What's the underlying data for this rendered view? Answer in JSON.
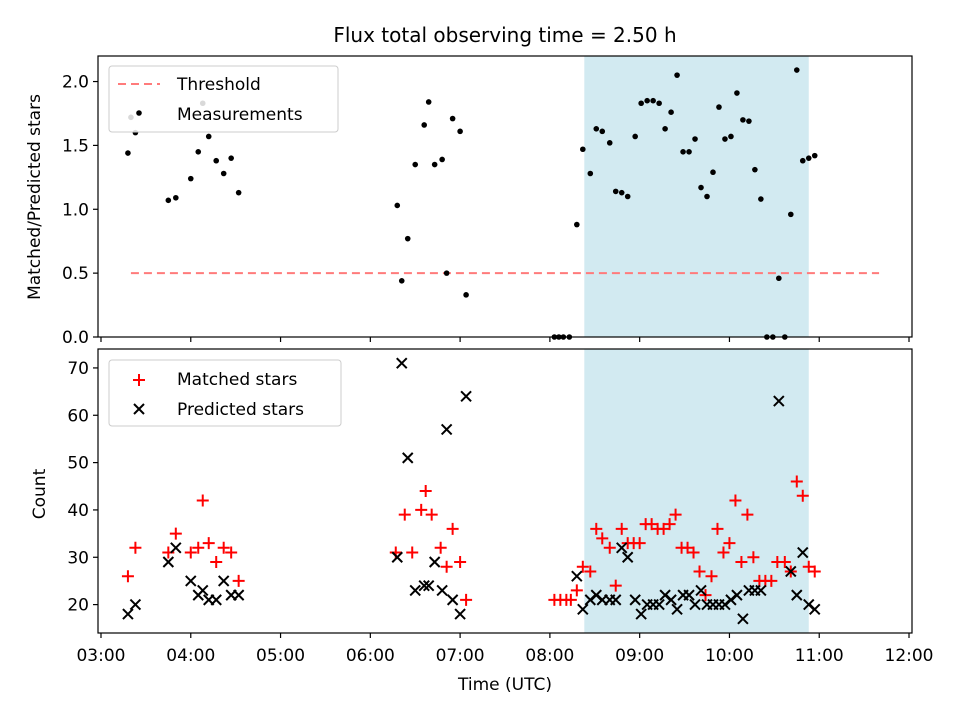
{
  "title": "Flux total observing time = 2.50 h",
  "xlabel": "Time (UTC)",
  "x_ticks": [
    "03:00",
    "04:00",
    "05:00",
    "06:00",
    "07:00",
    "08:00",
    "09:00",
    "10:00",
    "11:00",
    "12:00"
  ],
  "colors": {
    "threshold": "#ff7b7b",
    "measurement": "#000000",
    "matched": "#ff0000",
    "predicted": "#000000",
    "highlight": "#add8e6"
  },
  "chart_data": [
    {
      "type": "scatter",
      "ylabel": "Matched/Predicted stars",
      "xlim": [
        "02:58",
        "12:02"
      ],
      "ylim": [
        0,
        2.2
      ],
      "y_ticks": [
        "0.0",
        "0.5",
        "1.0",
        "1.5",
        "2.0"
      ],
      "legend": {
        "position": "top-left",
        "entries": [
          "Threshold",
          "Measurements"
        ]
      },
      "highlight_span": [
        "08:23",
        "10:53"
      ],
      "threshold": {
        "name": "Threshold",
        "y": 0.5,
        "x": [
          "03:20",
          "11:40"
        ],
        "style": "dashed"
      },
      "series": [
        {
          "name": "Measurements",
          "points": [
            [
              "03:18",
              1.44
            ],
            [
              "03:20",
              1.72
            ],
            [
              "03:23",
              1.6
            ],
            [
              "03:45",
              1.07
            ],
            [
              "03:50",
              1.09
            ],
            [
              "04:00",
              1.24
            ],
            [
              "04:05",
              1.45
            ],
            [
              "04:08",
              1.83
            ],
            [
              "04:12",
              1.57
            ],
            [
              "04:17",
              1.38
            ],
            [
              "04:22",
              1.28
            ],
            [
              "04:27",
              1.4
            ],
            [
              "04:32",
              1.13
            ],
            [
              "06:18",
              1.03
            ],
            [
              "06:21",
              0.44
            ],
            [
              "06:25",
              0.77
            ],
            [
              "06:30",
              1.35
            ],
            [
              "06:36",
              1.66
            ],
            [
              "06:39",
              1.84
            ],
            [
              "06:43",
              1.35
            ],
            [
              "06:48",
              1.39
            ],
            [
              "06:51",
              0.5
            ],
            [
              "06:55",
              1.71
            ],
            [
              "07:00",
              1.61
            ],
            [
              "07:04",
              0.33
            ],
            [
              "08:03",
              0.0
            ],
            [
              "08:06",
              0.0
            ],
            [
              "08:09",
              0.0
            ],
            [
              "08:13",
              0.0
            ],
            [
              "08:18",
              0.88
            ],
            [
              "08:22",
              1.47
            ],
            [
              "08:27",
              1.28
            ],
            [
              "08:31",
              1.63
            ],
            [
              "08:35",
              1.61
            ],
            [
              "08:40",
              1.52
            ],
            [
              "08:44",
              1.14
            ],
            [
              "08:48",
              1.13
            ],
            [
              "08:52",
              1.1
            ],
            [
              "08:57",
              1.57
            ],
            [
              "09:01",
              1.83
            ],
            [
              "09:05",
              1.85
            ],
            [
              "09:09",
              1.85
            ],
            [
              "09:13",
              1.83
            ],
            [
              "09:17",
              1.63
            ],
            [
              "09:21",
              1.76
            ],
            [
              "09:25",
              2.05
            ],
            [
              "09:29",
              1.45
            ],
            [
              "09:33",
              1.45
            ],
            [
              "09:37",
              1.55
            ],
            [
              "09:41",
              1.17
            ],
            [
              "09:45",
              1.1
            ],
            [
              "09:49",
              1.29
            ],
            [
              "09:53",
              1.8
            ],
            [
              "09:57",
              1.55
            ],
            [
              "10:01",
              1.57
            ],
            [
              "10:05",
              1.91
            ],
            [
              "10:09",
              1.7
            ],
            [
              "10:13",
              1.69
            ],
            [
              "10:17",
              1.31
            ],
            [
              "10:21",
              1.08
            ],
            [
              "10:25",
              0.0
            ],
            [
              "10:29",
              0.0
            ],
            [
              "10:33",
              0.46
            ],
            [
              "10:37",
              0.0
            ],
            [
              "10:41",
              0.96
            ],
            [
              "10:45",
              2.09
            ],
            [
              "10:49",
              1.38
            ],
            [
              "10:53",
              1.4
            ],
            [
              "10:57",
              1.42
            ]
          ]
        }
      ]
    },
    {
      "type": "scatter",
      "ylabel": "Count",
      "xlabel": "Time (UTC)",
      "xlim": [
        "02:58",
        "12:02"
      ],
      "ylim": [
        14,
        74
      ],
      "y_ticks": [
        "20",
        "30",
        "40",
        "50",
        "60",
        "70"
      ],
      "legend": {
        "position": "top-left",
        "entries": [
          "Matched stars",
          "Predicted stars"
        ]
      },
      "highlight_span": [
        "08:23",
        "10:53"
      ],
      "series": [
        {
          "name": "Matched stars",
          "marker": "plus",
          "points": [
            [
              "03:18",
              26
            ],
            [
              "03:23",
              32
            ],
            [
              "03:45",
              31
            ],
            [
              "03:50",
              35
            ],
            [
              "04:00",
              31
            ],
            [
              "04:05",
              32
            ],
            [
              "04:08",
              42
            ],
            [
              "04:12",
              33
            ],
            [
              "04:17",
              29
            ],
            [
              "04:22",
              32
            ],
            [
              "04:27",
              31
            ],
            [
              "04:32",
              25
            ],
            [
              "06:17",
              31
            ],
            [
              "06:23",
              39
            ],
            [
              "06:28",
              31
            ],
            [
              "06:34",
              40
            ],
            [
              "06:37",
              44
            ],
            [
              "06:41",
              39
            ],
            [
              "06:47",
              32
            ],
            [
              "06:51",
              28
            ],
            [
              "06:55",
              36
            ],
            [
              "07:00",
              29
            ],
            [
              "07:04",
              21
            ],
            [
              "08:03",
              21
            ],
            [
              "08:07",
              21
            ],
            [
              "08:11",
              21
            ],
            [
              "08:14",
              21
            ],
            [
              "08:18",
              23
            ],
            [
              "08:22",
              28
            ],
            [
              "08:27",
              27
            ],
            [
              "08:31",
              36
            ],
            [
              "08:35",
              34
            ],
            [
              "08:40",
              32
            ],
            [
              "08:44",
              24
            ],
            [
              "08:48",
              36
            ],
            [
              "08:52",
              33
            ],
            [
              "08:56",
              33
            ],
            [
              "09:00",
              33
            ],
            [
              "09:04",
              37
            ],
            [
              "09:08",
              37
            ],
            [
              "09:12",
              36
            ],
            [
              "09:16",
              36
            ],
            [
              "09:20",
              37
            ],
            [
              "09:24",
              39
            ],
            [
              "09:28",
              32
            ],
            [
              "09:32",
              32
            ],
            [
              "09:36",
              31
            ],
            [
              "09:40",
              27
            ],
            [
              "09:44",
              22
            ],
            [
              "09:48",
              26
            ],
            [
              "09:52",
              36
            ],
            [
              "09:56",
              31
            ],
            [
              "10:00",
              33
            ],
            [
              "10:04",
              42
            ],
            [
              "10:08",
              29
            ],
            [
              "10:12",
              39
            ],
            [
              "10:16",
              30
            ],
            [
              "10:20",
              25
            ],
            [
              "10:24",
              25
            ],
            [
              "10:28",
              25
            ],
            [
              "10:32",
              29
            ],
            [
              "10:37",
              29
            ],
            [
              "10:41",
              27
            ],
            [
              "10:45",
              46
            ],
            [
              "10:49",
              43
            ],
            [
              "10:53",
              28
            ],
            [
              "10:57",
              27
            ]
          ]
        },
        {
          "name": "Predicted stars",
          "marker": "x",
          "points": [
            [
              "03:18",
              18
            ],
            [
              "03:23",
              20
            ],
            [
              "03:45",
              29
            ],
            [
              "03:50",
              32
            ],
            [
              "04:00",
              25
            ],
            [
              "04:05",
              22
            ],
            [
              "04:08",
              23
            ],
            [
              "04:12",
              21
            ],
            [
              "04:17",
              21
            ],
            [
              "04:22",
              25
            ],
            [
              "04:27",
              22
            ],
            [
              "04:32",
              22
            ],
            [
              "06:18",
              30
            ],
            [
              "06:21",
              71
            ],
            [
              "06:25",
              51
            ],
            [
              "06:30",
              23
            ],
            [
              "06:36",
              24
            ],
            [
              "06:39",
              24
            ],
            [
              "06:43",
              29
            ],
            [
              "06:48",
              23
            ],
            [
              "06:51",
              57
            ],
            [
              "06:55",
              21
            ],
            [
              "07:00",
              18
            ],
            [
              "07:04",
              64
            ],
            [
              "08:18",
              26
            ],
            [
              "08:22",
              19
            ],
            [
              "08:27",
              21
            ],
            [
              "08:31",
              22
            ],
            [
              "08:35",
              21
            ],
            [
              "08:40",
              21
            ],
            [
              "08:44",
              21
            ],
            [
              "08:48",
              32
            ],
            [
              "08:52",
              30
            ],
            [
              "08:57",
              21
            ],
            [
              "09:01",
              18
            ],
            [
              "09:05",
              20
            ],
            [
              "09:09",
              20
            ],
            [
              "09:13",
              20
            ],
            [
              "09:17",
              22
            ],
            [
              "09:21",
              21
            ],
            [
              "09:25",
              19
            ],
            [
              "09:29",
              22
            ],
            [
              "09:33",
              22
            ],
            [
              "09:37",
              20
            ],
            [
              "09:41",
              23
            ],
            [
              "09:45",
              20
            ],
            [
              "09:49",
              20
            ],
            [
              "09:53",
              20
            ],
            [
              "09:57",
              20
            ],
            [
              "10:01",
              21
            ],
            [
              "10:05",
              22
            ],
            [
              "10:09",
              17
            ],
            [
              "10:13",
              23
            ],
            [
              "10:17",
              23
            ],
            [
              "10:21",
              23
            ],
            [
              "10:33",
              63
            ],
            [
              "10:41",
              27
            ],
            [
              "10:45",
              22
            ],
            [
              "10:49",
              31
            ],
            [
              "10:53",
              20
            ],
            [
              "10:57",
              19
            ]
          ]
        }
      ]
    }
  ]
}
